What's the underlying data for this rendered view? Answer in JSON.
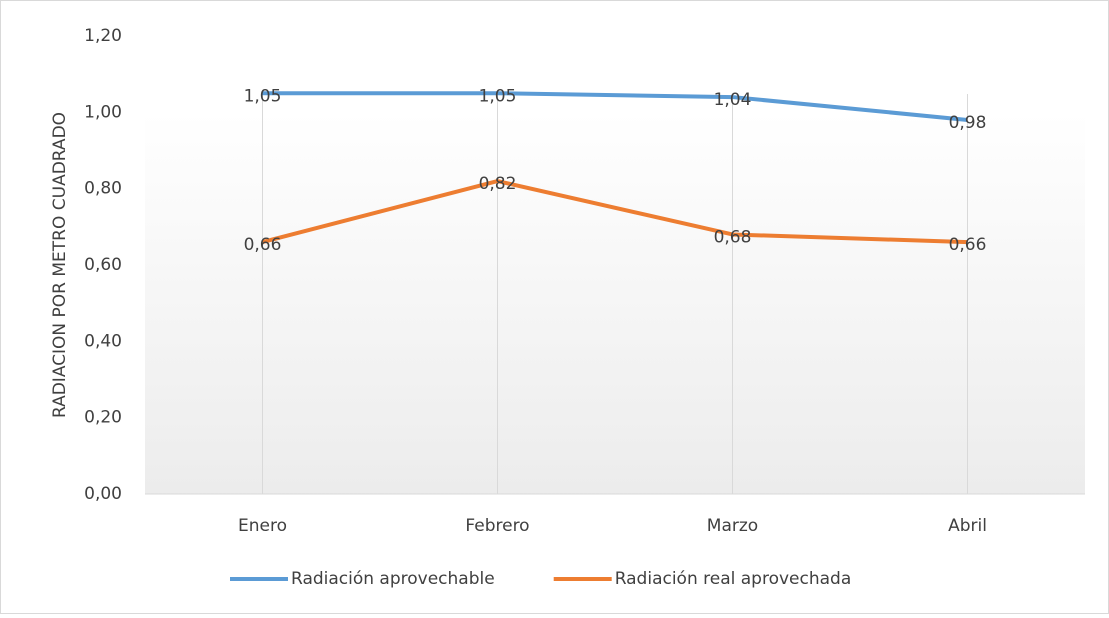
{
  "chart_data": {
    "type": "line",
    "y_axis_label": "RADIACION POR METRO CUADRADO",
    "categories": [
      "Enero",
      "Febrero",
      "Marzo",
      "Abril"
    ],
    "series": [
      {
        "name": "Radiación aprovechable",
        "color": "#5b9bd5",
        "values": [
          1.05,
          1.05,
          1.04,
          0.98
        ],
        "value_labels": [
          "1,05",
          "1,05",
          "1,04",
          "0,98"
        ]
      },
      {
        "name": "Radiación real aprovechada",
        "color": "#ed7d31",
        "values": [
          0.66,
          0.82,
          0.68,
          0.66
        ],
        "value_labels": [
          "0,66",
          "0,82",
          "0,68",
          "0,66"
        ]
      }
    ],
    "ylim": [
      0,
      1.2
    ],
    "yticks": [
      {
        "value": 0,
        "label": "0,00"
      },
      {
        "value": 0.2,
        "label": "0,20"
      },
      {
        "value": 0.4,
        "label": "0,40"
      },
      {
        "value": 0.6,
        "label": "0,60"
      },
      {
        "value": 0.8,
        "label": "0,80"
      },
      {
        "value": 1.0,
        "label": "1,00"
      },
      {
        "value": 1.2,
        "label": "1,20"
      }
    ],
    "legend": "bottom",
    "grid": "vertical"
  }
}
